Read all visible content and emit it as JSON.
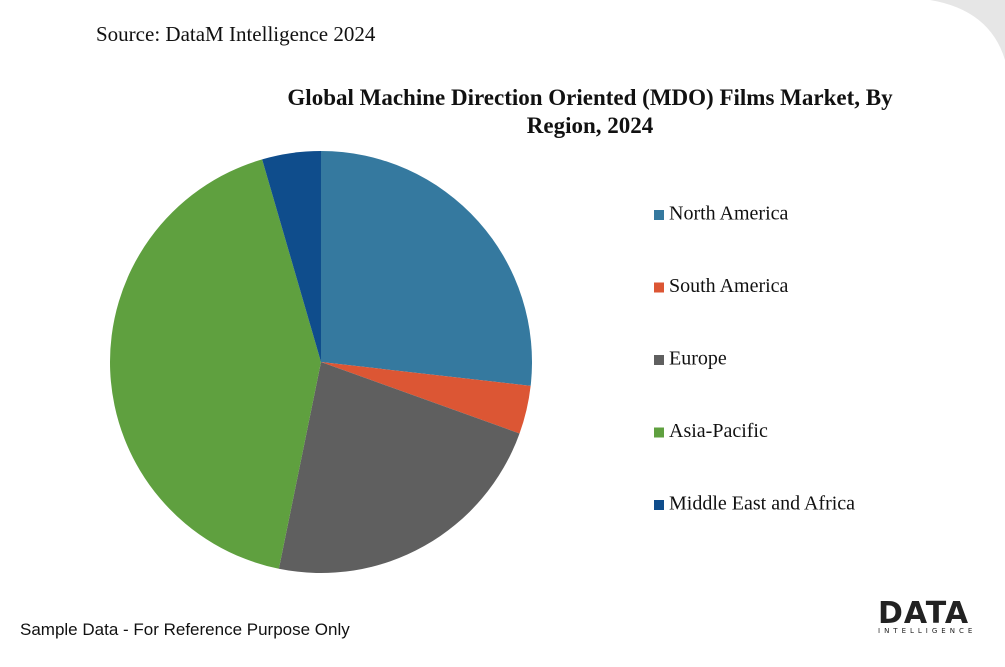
{
  "source": "Source: DataM Intelligence 2024",
  "note": "Sample Data - For Reference Purpose Only",
  "logo": {
    "text": "DATA",
    "subtext": "INTELLIGENCE"
  },
  "chart_data": {
    "type": "pie",
    "title": "Global Machine Direction Oriented (MDO) Films Market, By Region, 2024",
    "categories": [
      "North America",
      "South America",
      "Europe",
      "Asia-Pacific",
      "Middle East and Africa"
    ],
    "values": [
      26.8,
      3.7,
      22.7,
      42.3,
      4.5
    ],
    "colors": [
      "#35799f",
      "#dc5634",
      "#5f5f5f",
      "#5fa03f",
      "#0f4d8c"
    ],
    "legend": "right"
  }
}
